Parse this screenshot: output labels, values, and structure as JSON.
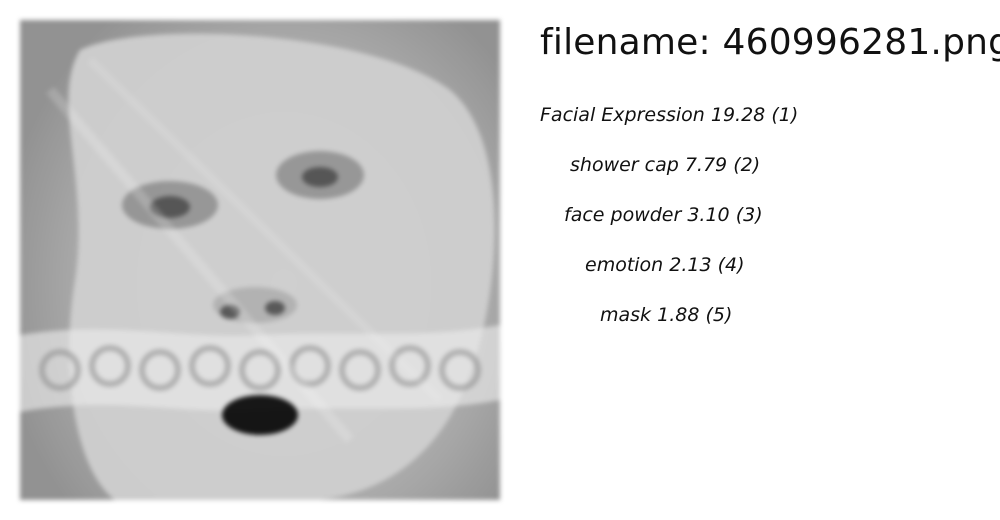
{
  "image": {
    "alt": "Blurry grayscale face with open mouth and mask"
  },
  "header": {
    "filename_text": "filename: 460996281.png"
  },
  "results": [
    {
      "label": "Facial Expression",
      "score": "19.28",
      "rank": "(1)"
    },
    {
      "label": "shower cap",
      "score": "7.79",
      "rank": "(2)"
    },
    {
      "label": "face powder",
      "score": "3.10",
      "rank": "(3)"
    },
    {
      "label": "emotion",
      "score": "2.13",
      "rank": "(4)"
    },
    {
      "label": "mask",
      "score": "1.88",
      "rank": "(5)"
    }
  ]
}
